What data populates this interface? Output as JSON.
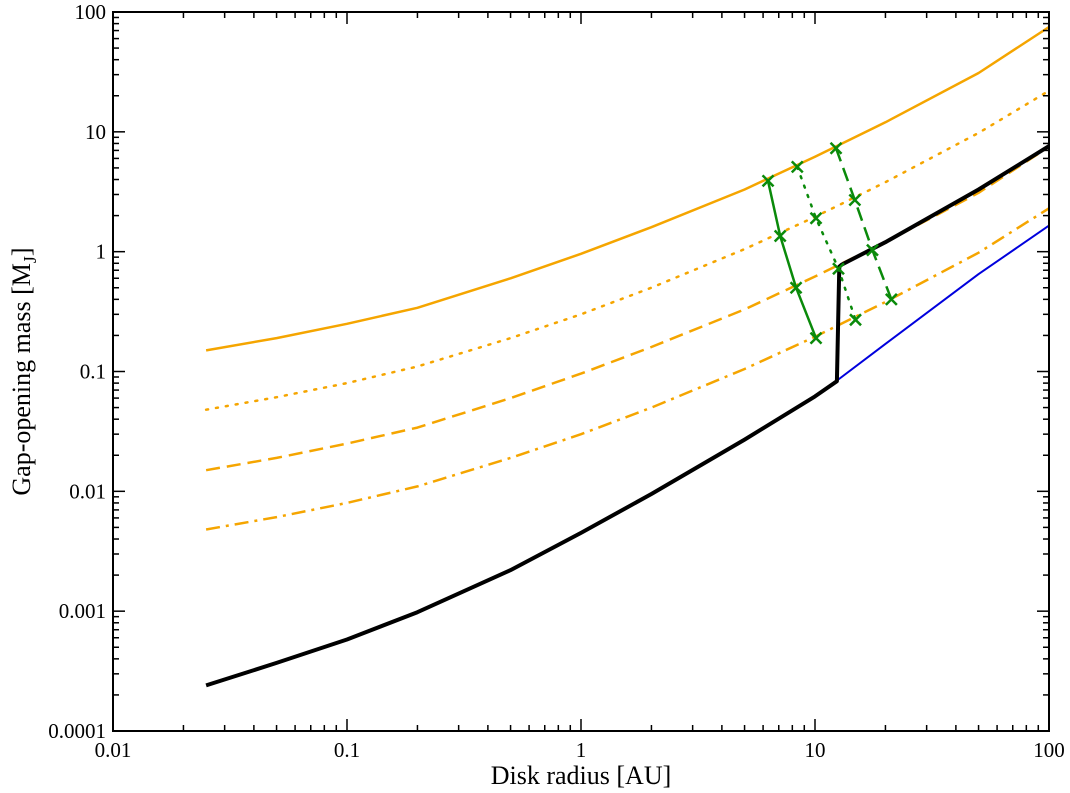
{
  "chart_data": {
    "type": "line",
    "xscale": "log",
    "yscale": "log",
    "xlim": [
      0.01,
      100
    ],
    "ylim": [
      0.0001,
      100
    ],
    "xlabel": "Disk radius [AU]",
    "ylabel_main": "Gap-opening mass [M",
    "ylabel_sub": "J",
    "ylabel_close": "]",
    "x_ticks": [
      {
        "value": 0.01,
        "label": "0.01"
      },
      {
        "value": 0.1,
        "label": "0.1"
      },
      {
        "value": 1,
        "label": "1"
      },
      {
        "value": 10,
        "label": "10"
      },
      {
        "value": 100,
        "label": "100"
      }
    ],
    "y_ticks": [
      {
        "value": 0.0001,
        "label": "0.0001"
      },
      {
        "value": 0.001,
        "label": "0.001"
      },
      {
        "value": 0.01,
        "label": "0.01"
      },
      {
        "value": 0.1,
        "label": "0.1"
      },
      {
        "value": 1,
        "label": "1"
      },
      {
        "value": 10,
        "label": "10"
      },
      {
        "value": 100,
        "label": "100"
      }
    ],
    "grid": false,
    "legend": "none",
    "series": [
      {
        "color": "#f5a500",
        "style": "solid",
        "width": 2.5,
        "x": [
          0.025,
          0.05,
          0.1,
          0.2,
          0.5,
          1,
          2,
          5,
          10,
          20,
          50,
          100
        ],
        "y": [
          0.15,
          0.19,
          0.25,
          0.34,
          0.6,
          0.96,
          1.6,
          3.3,
          6.2,
          12,
          31,
          75
        ]
      },
      {
        "color": "#f5a500",
        "style": "dotted",
        "width": 2.5,
        "x": [
          0.025,
          0.05,
          0.1,
          0.2,
          0.5,
          1,
          2,
          5,
          10,
          20,
          50,
          100
        ],
        "y": [
          0.048,
          0.061,
          0.08,
          0.11,
          0.19,
          0.3,
          0.5,
          1.05,
          1.95,
          3.8,
          9.8,
          22
        ]
      },
      {
        "color": "#f5a500",
        "style": "dashed",
        "width": 2.5,
        "x": [
          0.025,
          0.05,
          0.1,
          0.2,
          0.5,
          1,
          2,
          5,
          10,
          20,
          50,
          100
        ],
        "y": [
          0.015,
          0.019,
          0.025,
          0.034,
          0.06,
          0.096,
          0.16,
          0.33,
          0.62,
          1.2,
          3.1,
          7.5
        ]
      },
      {
        "color": "#f5a500",
        "style": "dashdot",
        "width": 2.5,
        "x": [
          0.025,
          0.05,
          0.1,
          0.2,
          0.5,
          1,
          2,
          5,
          10,
          20,
          50,
          100
        ],
        "y": [
          0.0048,
          0.0061,
          0.008,
          0.011,
          0.019,
          0.03,
          0.05,
          0.105,
          0.195,
          0.38,
          0.98,
          2.3
        ]
      },
      {
        "color": "#0000dd",
        "style": "solid",
        "width": 2,
        "x": [
          12.5,
          20,
          50,
          100
        ],
        "y": [
          0.085,
          0.17,
          0.65,
          1.65
        ]
      },
      {
        "color": "#000000",
        "style": "solid",
        "width": 4,
        "x": [
          0.025,
          0.05,
          0.1,
          0.2,
          0.5,
          1,
          2,
          5,
          10,
          12.4,
          12.7,
          13,
          20,
          50,
          100
        ],
        "y": [
          0.00024,
          0.00037,
          0.00058,
          0.00098,
          0.0022,
          0.0045,
          0.0095,
          0.027,
          0.062,
          0.083,
          0.75,
          0.78,
          1.2,
          3.3,
          7.6
        ]
      },
      {
        "color": "#0a8a0a",
        "style": "solid",
        "width": 2.5,
        "marker": "x",
        "x": [
          6.3,
          7.1,
          8.3,
          10.1
        ],
        "y": [
          3.9,
          1.35,
          0.5,
          0.19
        ]
      },
      {
        "color": "#0a8a0a",
        "style": "dotted",
        "width": 2.5,
        "marker": "x",
        "x": [
          8.4,
          10.1,
          12.6,
          14.9
        ],
        "y": [
          5.1,
          1.9,
          0.72,
          0.27
        ]
      },
      {
        "color": "#0a8a0a",
        "style": "dashed",
        "width": 2.5,
        "marker": "x",
        "x": [
          12.3,
          14.8,
          17.6,
          21.2
        ],
        "y": [
          7.3,
          2.7,
          1.03,
          0.4
        ]
      }
    ]
  }
}
